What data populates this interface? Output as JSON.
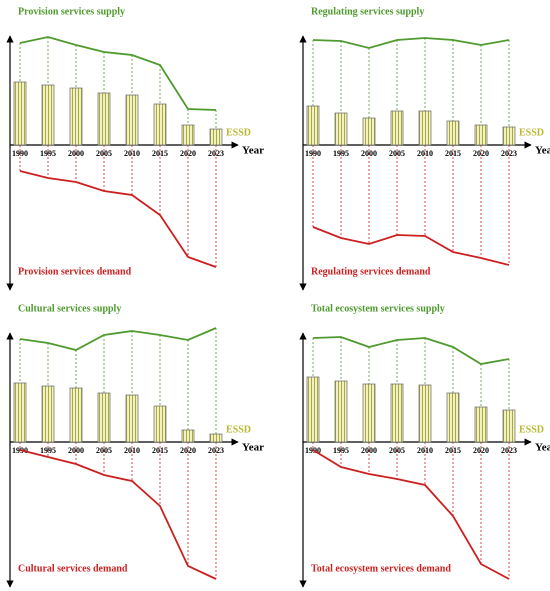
{
  "chart_data": [
    {
      "type": "combo",
      "x_label": "Year",
      "categories": [
        "1990",
        "1995",
        "2000",
        "2005",
        "2010",
        "2015",
        "2020",
        "2023"
      ],
      "ylim": [
        -145,
        115
      ],
      "series": [
        {
          "name": "Provision services supply",
          "color": "#4f9a2e",
          "mark": "line",
          "values": [
            102,
            108,
            100,
            93,
            90,
            80,
            36,
            35
          ]
        },
        {
          "name": "ESSD",
          "color": "#b8b832",
          "mark": "bar",
          "values": [
            63,
            60,
            57,
            52,
            50,
            41,
            20,
            16
          ]
        },
        {
          "name": "Provision services demand",
          "color": "#cc1f1f",
          "mark": "line",
          "values": [
            -26,
            -33,
            -37,
            -46,
            -50,
            -70,
            -112,
            -122
          ]
        }
      ]
    },
    {
      "type": "combo",
      "x_label": "Year",
      "categories": [
        "1990",
        "1995",
        "2000",
        "2005",
        "2010",
        "2015",
        "2020",
        "2023"
      ],
      "ylim": [
        -145,
        115
      ],
      "series": [
        {
          "name": "Regulating services supply",
          "color": "#4f9a2e",
          "mark": "line",
          "values": [
            105,
            104,
            97,
            105,
            107,
            105,
            100,
            105
          ]
        },
        {
          "name": "ESSD",
          "color": "#b8b832",
          "mark": "bar",
          "values": [
            39,
            32,
            27,
            34,
            34,
            24,
            20,
            18
          ]
        },
        {
          "name": "Regulating services demand",
          "color": "#cc1f1f",
          "mark": "line",
          "values": [
            -82,
            -93,
            -99,
            -90,
            -91,
            -107,
            -113,
            -120
          ]
        }
      ]
    },
    {
      "type": "combo",
      "x_label": "Year",
      "categories": [
        "1990",
        "1995",
        "2000",
        "2005",
        "2010",
        "2015",
        "2020",
        "2023"
      ],
      "ylim": [
        -145,
        115
      ],
      "series": [
        {
          "name": "Cultural services supply",
          "color": "#4f9a2e",
          "mark": "line",
          "values": [
            103,
            99,
            92,
            107,
            111,
            107,
            102,
            114
          ]
        },
        {
          "name": "ESSD",
          "color": "#b8b832",
          "mark": "bar",
          "values": [
            59,
            56,
            54,
            49,
            47,
            36,
            12,
            8
          ]
        },
        {
          "name": "Cultural services demand",
          "color": "#cc1f1f",
          "mark": "line",
          "values": [
            -8,
            -15,
            -22,
            -33,
            -39,
            -64,
            -124,
            -137
          ]
        }
      ]
    },
    {
      "type": "combo",
      "x_label": "Year",
      "categories": [
        "1990",
        "1995",
        "2000",
        "2005",
        "2010",
        "2015",
        "2020",
        "2023"
      ],
      "ylim": [
        -145,
        115
      ],
      "series": [
        {
          "name": "Total ecosystem services supply",
          "color": "#4f9a2e",
          "mark": "line",
          "values": [
            104,
            105,
            95,
            102,
            104,
            95,
            78,
            83
          ]
        },
        {
          "name": "ESSD",
          "color": "#b8b832",
          "mark": "bar",
          "values": [
            65,
            61,
            58,
            58,
            57,
            49,
            35,
            32
          ]
        },
        {
          "name": "Total ecosystem services demand",
          "color": "#cc1f1f",
          "mark": "line",
          "values": [
            -8,
            -25,
            -32,
            -37,
            -43,
            -74,
            -122,
            -137
          ]
        }
      ]
    }
  ]
}
